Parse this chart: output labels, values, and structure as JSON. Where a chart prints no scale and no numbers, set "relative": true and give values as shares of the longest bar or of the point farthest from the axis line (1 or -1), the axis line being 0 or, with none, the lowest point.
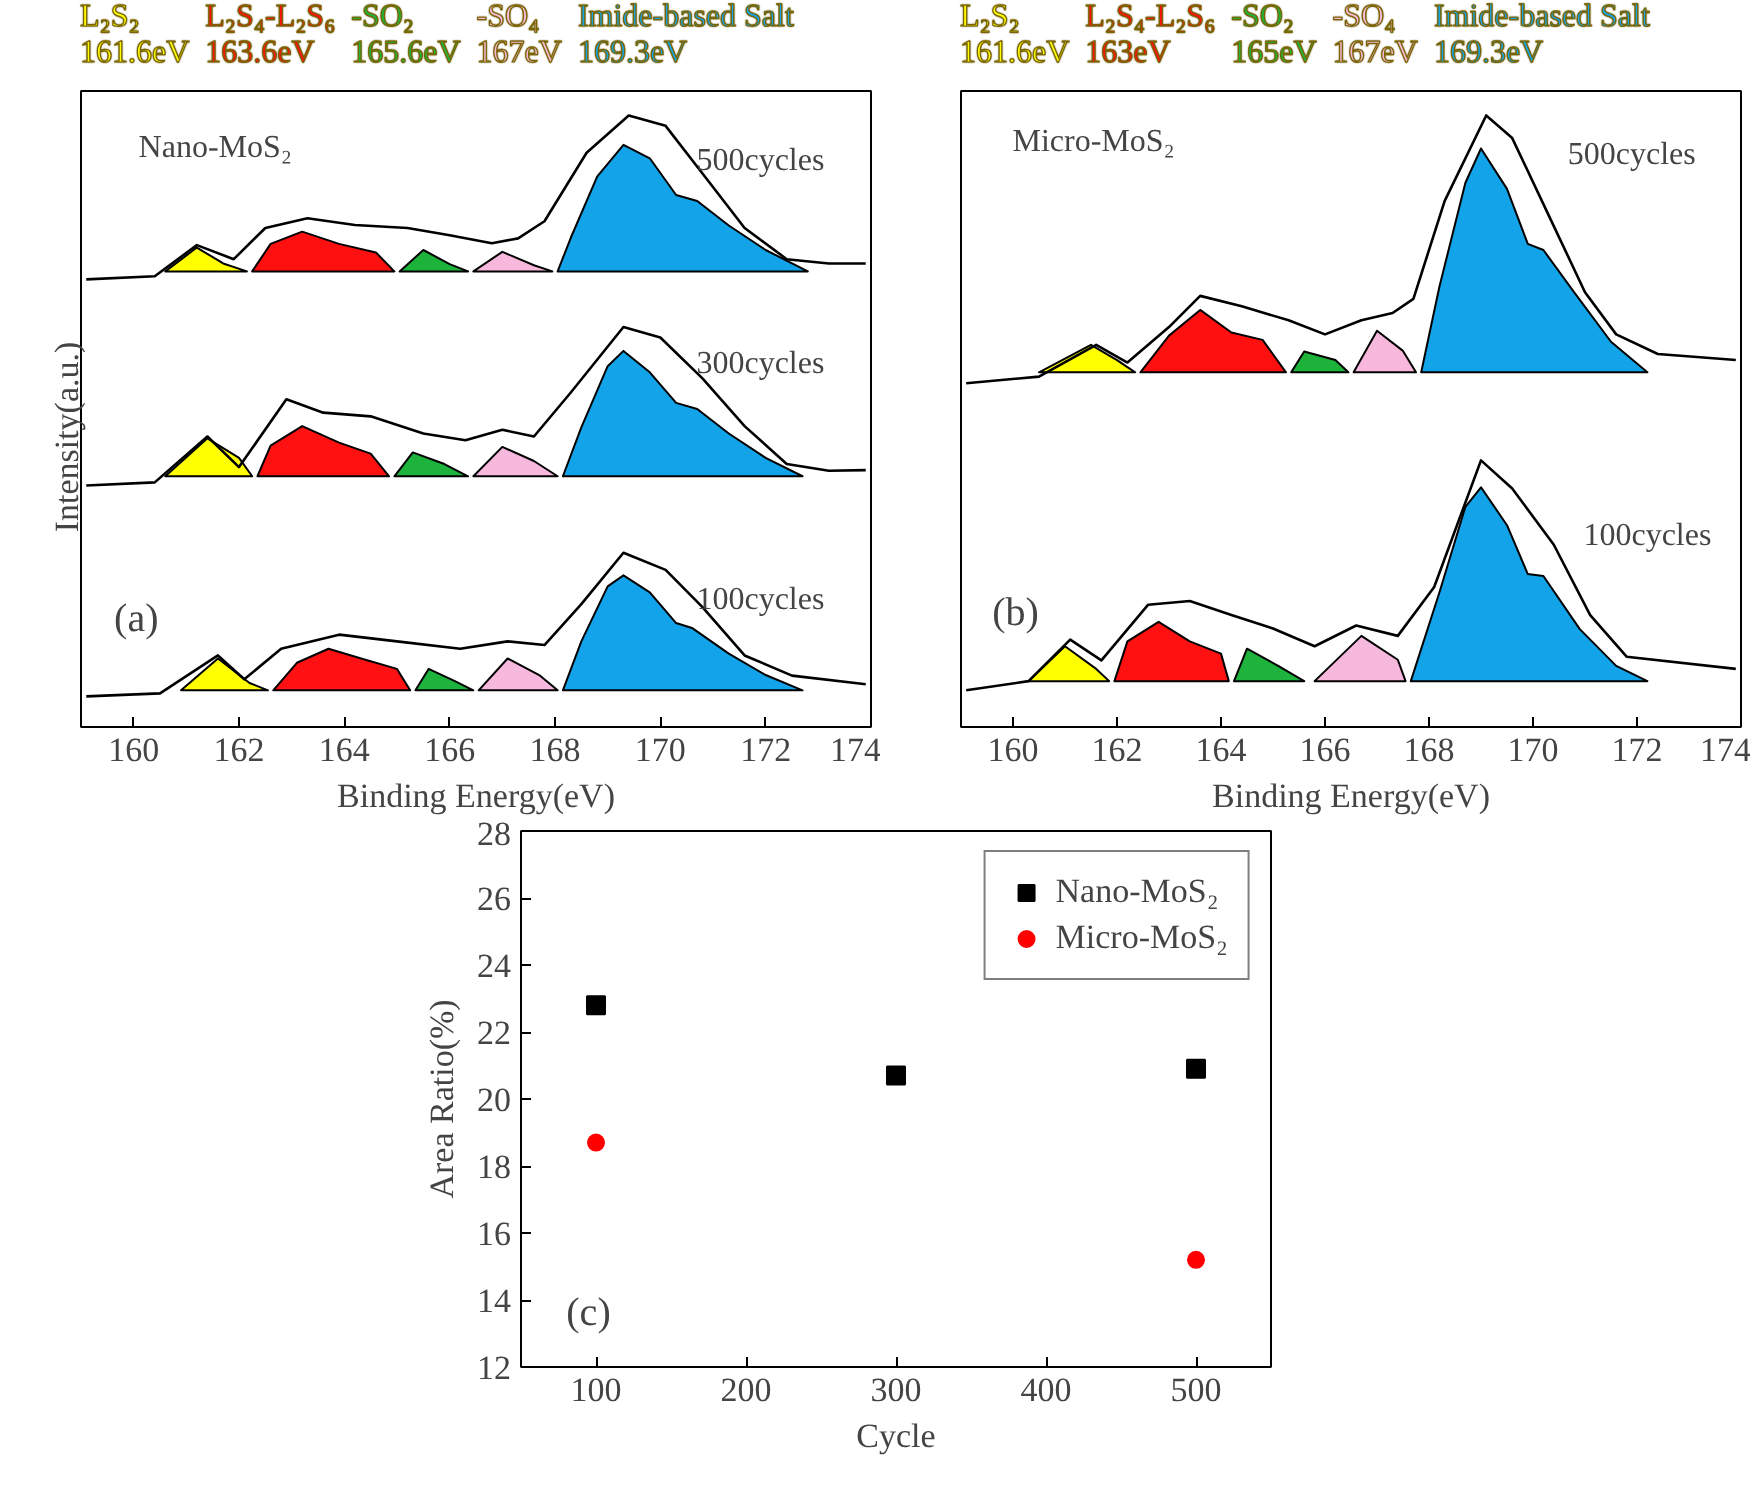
{
  "chart_data": [
    {
      "type": "line",
      "relative": true,
      "xlabel": "Binding Energy(eV)",
      "ylabel": "Intensity(a.u.)",
      "xlim": [
        159,
        174
      ],
      "xticks": [
        160,
        162,
        164,
        166,
        168,
        170,
        172,
        174
      ],
      "legend": "top",
      "grid": false,
      "annotations": [
        "Nano-MoS₂",
        "(a)",
        "500cycles",
        "300cycles",
        "100cycles"
      ],
      "series": [
        {
          "type": "area",
          "name": "L₂S₂\n161.6eV",
          "color": "#ffff00",
          "x": [
            160.6,
            161.2,
            161.7,
            162.15
          ],
          "values": [
            0.745,
            0.784,
            0.758,
            0.745
          ]
        },
        {
          "type": "area",
          "name": "L₂S₄-L₂S₆\n163.6eV",
          "color": "#ff1010",
          "x": [
            162.25,
            162.6,
            163.2,
            163.9,
            164.6,
            164.95
          ],
          "values": [
            0.745,
            0.79,
            0.81,
            0.79,
            0.776,
            0.745
          ]
        },
        {
          "type": "area",
          "name": "-SO₂\n165.6eV",
          "color": "#1db33b",
          "x": [
            165.05,
            165.5,
            166.0,
            166.35
          ],
          "values": [
            0.745,
            0.78,
            0.757,
            0.745
          ]
        },
        {
          "type": "area",
          "name": "-SO₄\n167eV",
          "color": "#f7b8dc",
          "x": [
            166.45,
            167.0,
            167.6,
            167.95
          ],
          "values": [
            0.745,
            0.777,
            0.755,
            0.745
          ]
        },
        {
          "type": "area",
          "name": "Imide-based Salt\n169.3eV",
          "color": "#12a3e8",
          "x": [
            168.05,
            168.3,
            168.8,
            169.3,
            169.8,
            170.3,
            170.7,
            171.3,
            172.0,
            172.8
          ],
          "values": [
            0.745,
            0.8,
            0.9,
            0.952,
            0.93,
            0.87,
            0.86,
            0.82,
            0.78,
            0.745
          ]
        },
        {
          "type": "line",
          "color": "#000000",
          "x": [
            159.1,
            160.4,
            161.2,
            161.9,
            162.5,
            163.3,
            164.2,
            165.2,
            166.0,
            166.8,
            167.3,
            167.8,
            168.6,
            169.4,
            170.1,
            170.9,
            171.6,
            172.4,
            173.2,
            173.9
          ],
          "values": [
            0.732,
            0.737,
            0.788,
            0.765,
            0.816,
            0.832,
            0.821,
            0.816,
            0.804,
            0.791,
            0.799,
            0.827,
            0.939,
            1.0,
            0.983,
            0.894,
            0.816,
            0.765,
            0.758,
            0.758
          ]
        },
        {
          "type": "area",
          "color": "#ffff01",
          "x": [
            160.6,
            161.4,
            162.0,
            162.25
          ],
          "values": [
            0.41,
            0.472,
            0.44,
            0.41
          ]
        },
        {
          "type": "area",
          "color": "#ff1011",
          "x": [
            162.35,
            162.6,
            163.2,
            163.9,
            164.5,
            164.85
          ],
          "values": [
            0.41,
            0.46,
            0.492,
            0.465,
            0.447,
            0.41
          ]
        },
        {
          "type": "area",
          "color": "#1db33c",
          "x": [
            164.95,
            165.3,
            165.9,
            166.35
          ],
          "values": [
            0.41,
            0.449,
            0.43,
            0.41
          ]
        },
        {
          "type": "area",
          "color": "#f7b8dd",
          "x": [
            166.45,
            167.0,
            167.6,
            168.05
          ],
          "values": [
            0.41,
            0.458,
            0.435,
            0.41
          ]
        },
        {
          "type": "area",
          "color": "#12a3e9",
          "x": [
            168.15,
            168.5,
            169.0,
            169.3,
            169.8,
            170.3,
            170.7,
            171.3,
            172.0,
            172.7
          ],
          "values": [
            0.41,
            0.49,
            0.59,
            0.615,
            0.58,
            0.53,
            0.52,
            0.48,
            0.44,
            0.41
          ]
        },
        {
          "type": "line",
          "color": "#000000",
          "x": [
            159.1,
            160.4,
            161.4,
            162.0,
            162.9,
            163.6,
            164.5,
            165.5,
            166.3,
            167.0,
            167.6,
            168.3,
            169.3,
            170.0,
            170.8,
            171.6,
            172.4,
            173.2,
            173.9
          ],
          "values": [
            0.395,
            0.4,
            0.475,
            0.425,
            0.536,
            0.514,
            0.508,
            0.48,
            0.469,
            0.486,
            0.475,
            0.547,
            0.654,
            0.637,
            0.57,
            0.492,
            0.43,
            0.419,
            0.42
          ]
        },
        {
          "type": "area",
          "color": "#ffff02",
          "x": [
            160.9,
            161.6,
            162.2,
            162.55
          ],
          "values": [
            0.06,
            0.112,
            0.072,
            0.06
          ]
        },
        {
          "type": "area",
          "color": "#ff1012",
          "x": [
            162.65,
            163.1,
            163.7,
            164.4,
            165.0,
            165.25
          ],
          "values": [
            0.06,
            0.105,
            0.128,
            0.11,
            0.095,
            0.06
          ]
        },
        {
          "type": "area",
          "color": "#1db33d",
          "x": [
            165.35,
            165.6,
            166.1,
            166.45
          ],
          "values": [
            0.06,
            0.095,
            0.075,
            0.06
          ]
        },
        {
          "type": "area",
          "color": "#f7b8de",
          "x": [
            166.55,
            167.1,
            167.7,
            168.05
          ],
          "values": [
            0.06,
            0.112,
            0.085,
            0.06
          ]
        },
        {
          "type": "area",
          "color": "#12a3ea",
          "x": [
            168.15,
            168.5,
            169.0,
            169.3,
            169.8,
            170.3,
            170.6,
            171.3,
            172.0,
            172.7
          ],
          "values": [
            0.06,
            0.14,
            0.23,
            0.248,
            0.22,
            0.17,
            0.162,
            0.12,
            0.085,
            0.06
          ]
        },
        {
          "type": "line",
          "color": "#000000",
          "x": [
            159.1,
            160.5,
            161.6,
            162.1,
            162.8,
            163.9,
            165.0,
            166.2,
            167.1,
            167.8,
            168.5,
            169.3,
            170.1,
            170.8,
            171.6,
            172.5,
            173.9
          ],
          "values": [
            0.05,
            0.055,
            0.117,
            0.078,
            0.128,
            0.151,
            0.14,
            0.128,
            0.14,
            0.134,
            0.201,
            0.285,
            0.257,
            0.196,
            0.117,
            0.084,
            0.07
          ]
        }
      ]
    },
    {
      "type": "line",
      "relative": true,
      "xlabel": "Binding Energy(eV)",
      "xlim": [
        159,
        174
      ],
      "xticks": [
        160,
        162,
        164,
        166,
        168,
        170,
        172,
        174
      ],
      "legend": "top",
      "grid": false,
      "annotations": [
        "Micro-MoS₂",
        "(b)",
        "500cycles",
        "100cycles"
      ],
      "series": [
        {
          "type": "area",
          "name": "L₂S₂\n161.6eV",
          "color": "#ffff00",
          "x": [
            160.5,
            161.5,
            162.0,
            162.35
          ],
          "values": [
            0.58,
            0.625,
            0.6,
            0.58
          ]
        },
        {
          "type": "area",
          "name": "L₂S₄-L₂S₆\n163eV",
          "color": "#ff1010",
          "x": [
            162.45,
            163.0,
            163.6,
            164.2,
            164.8,
            165.25
          ],
          "values": [
            0.58,
            0.64,
            0.682,
            0.645,
            0.633,
            0.58
          ]
        },
        {
          "type": "area",
          "name": "-SO₂\n165eV",
          "color": "#1db33b",
          "x": [
            165.35,
            165.6,
            166.2,
            166.45
          ],
          "values": [
            0.58,
            0.614,
            0.6,
            0.58
          ]
        },
        {
          "type": "area",
          "name": "-SO₄\n167eV",
          "color": "#f7b8dc",
          "x": [
            166.55,
            167.0,
            167.5,
            167.75
          ],
          "values": [
            0.58,
            0.648,
            0.615,
            0.58
          ]
        },
        {
          "type": "area",
          "name": "Imide-based Salt\n169.3eV",
          "color": "#12a3e8",
          "x": [
            167.85,
            168.2,
            168.7,
            169.0,
            169.5,
            169.9,
            170.2,
            170.8,
            171.5,
            172.2
          ],
          "values": [
            0.58,
            0.72,
            0.89,
            0.946,
            0.88,
            0.79,
            0.78,
            0.71,
            0.63,
            0.58
          ]
        },
        {
          "type": "line",
          "color": "#000000",
          "x": [
            159.1,
            160.5,
            161.6,
            162.2,
            163.0,
            163.6,
            164.4,
            165.3,
            166.0,
            166.7,
            167.3,
            167.7,
            168.3,
            169.1,
            169.6,
            170.3,
            171.0,
            171.6,
            172.4,
            173.9
          ],
          "values": [
            0.562,
            0.573,
            0.625,
            0.596,
            0.654,
            0.705,
            0.688,
            0.665,
            0.642,
            0.665,
            0.677,
            0.7,
            0.86,
            1.0,
            0.963,
            0.837,
            0.711,
            0.642,
            0.61,
            0.6
          ]
        },
        {
          "type": "area",
          "color": "#ffff01",
          "x": [
            160.3,
            161.0,
            161.6,
            161.85
          ],
          "values": [
            0.075,
            0.132,
            0.095,
            0.075
          ]
        },
        {
          "type": "area",
          "color": "#ff1011",
          "x": [
            161.95,
            162.2,
            162.8,
            163.4,
            164.0,
            164.15
          ],
          "values": [
            0.075,
            0.14,
            0.172,
            0.14,
            0.12,
            0.075
          ]
        },
        {
          "type": "area",
          "color": "#1db33c",
          "x": [
            164.25,
            164.5,
            165.1,
            165.6
          ],
          "values": [
            0.075,
            0.128,
            0.1,
            0.075
          ]
        },
        {
          "type": "area",
          "color": "#f7b8dd",
          "x": [
            165.8,
            166.7,
            167.4,
            167.55
          ],
          "values": [
            0.075,
            0.149,
            0.11,
            0.075
          ]
        },
        {
          "type": "area",
          "color": "#12a3e9",
          "x": [
            167.65,
            168.2,
            168.7,
            169.0,
            169.5,
            169.9,
            170.2,
            170.9,
            171.6,
            172.2
          ],
          "values": [
            0.075,
            0.22,
            0.36,
            0.392,
            0.33,
            0.25,
            0.247,
            0.16,
            0.1,
            0.075
          ]
        },
        {
          "type": "line",
          "color": "#000000",
          "x": [
            159.1,
            160.3,
            161.1,
            161.7,
            162.6,
            163.4,
            164.2,
            165.0,
            165.8,
            166.6,
            167.4,
            168.1,
            169.0,
            169.6,
            170.4,
            171.1,
            171.8,
            173.9
          ],
          "values": [
            0.06,
            0.075,
            0.143,
            0.109,
            0.2,
            0.206,
            0.183,
            0.161,
            0.132,
            0.166,
            0.149,
            0.229,
            0.436,
            0.39,
            0.298,
            0.183,
            0.115,
            0.095
          ]
        }
      ]
    },
    {
      "type": "scatter",
      "xlabel": "Cycle",
      "ylabel": "Area Ratio(%)",
      "xlim": [
        50,
        550
      ],
      "xticks": [
        100,
        200,
        300,
        400,
        500
      ],
      "ylim": [
        12,
        28
      ],
      "yticks": [
        12,
        14,
        16,
        18,
        20,
        22,
        24,
        26,
        28
      ],
      "legend": "top right",
      "grid": false,
      "annotations": [
        "(c)"
      ],
      "series": [
        {
          "name": "Nano-MoS₂",
          "color": "#000000",
          "marker": "square",
          "x": [
            100,
            300,
            500
          ],
          "values": [
            22.8,
            20.7,
            20.9
          ]
        },
        {
          "name": "Micro-MoS₂",
          "color": "#ff0000",
          "marker": "circle",
          "x": [
            100,
            500
          ],
          "values": [
            18.7,
            15.2
          ]
        }
      ]
    }
  ]
}
